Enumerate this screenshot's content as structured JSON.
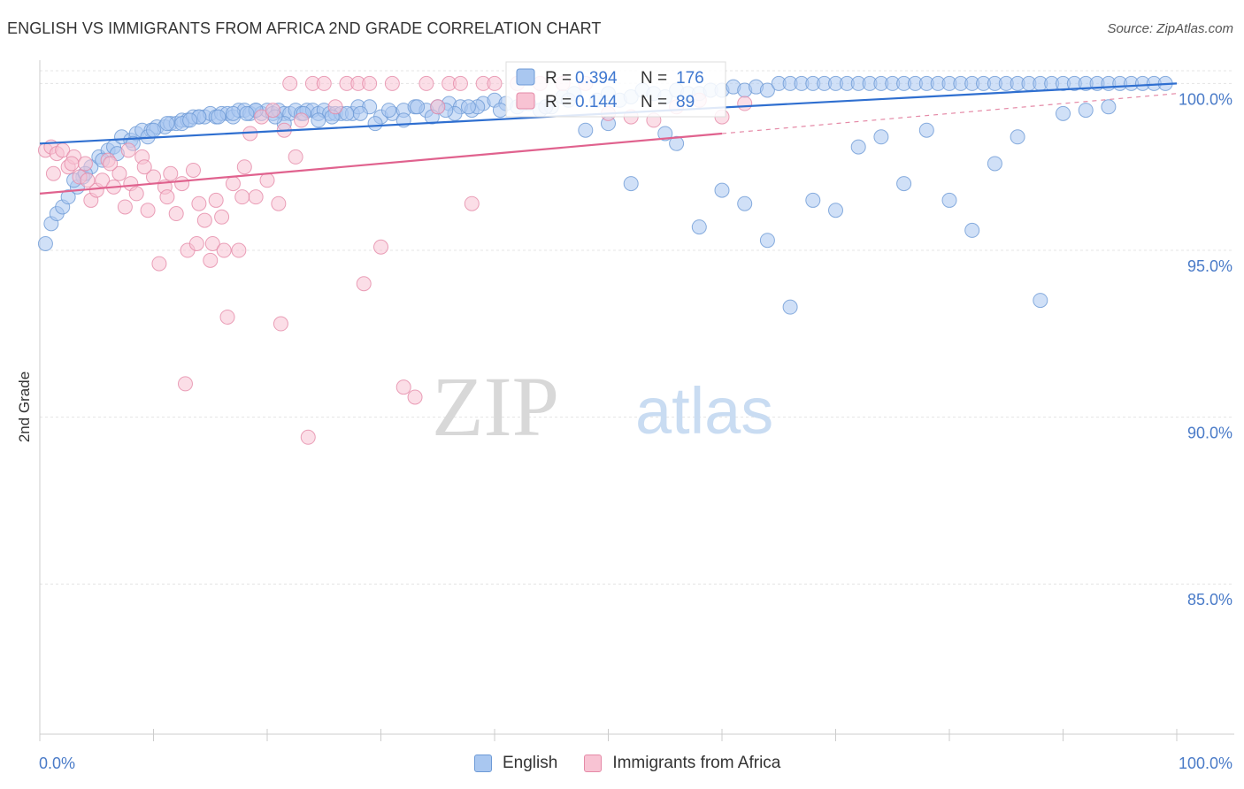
{
  "title": "ENGLISH VS IMMIGRANTS FROM AFRICA 2ND GRADE CORRELATION CHART",
  "source": "Source: ZipAtlas.com",
  "watermark": {
    "zip": "ZIP",
    "atlas": "atlas"
  },
  "chart_data": {
    "type": "scatter",
    "title": "ENGLISH VS IMMIGRANTS FROM AFRICA 2ND GRADE CORRELATION CHART",
    "xlabel": "",
    "ylabel": "2nd Grade",
    "xlim": [
      0,
      100
    ],
    "ylim": [
      80.5,
      100.7
    ],
    "x_tick_labels": {
      "min": "0.0%",
      "max": "100.0%"
    },
    "y_ticks": [
      {
        "value": 100,
        "label": "100.0%"
      },
      {
        "value": 95,
        "label": "95.0%"
      },
      {
        "value": 90,
        "label": "90.0%"
      },
      {
        "value": 85,
        "label": "85.0%"
      }
    ],
    "stats": [
      {
        "r_label": "R =",
        "r": "0.394",
        "n_label": "N =",
        "n": "176"
      },
      {
        "r_label": "R =",
        "r": "0.144",
        "n_label": "N =",
        "n": "89"
      }
    ],
    "series": [
      {
        "name": "English",
        "color": "#6d9ad6",
        "fill": "#a9c7f0",
        "trend": {
          "x0": 0,
          "y0": 98.2,
          "x1": 100,
          "y1": 100.0
        },
        "points": [
          [
            0.5,
            95.2
          ],
          [
            1,
            95.8
          ],
          [
            1.5,
            96.1
          ],
          [
            2,
            96.3
          ],
          [
            2.5,
            96.6
          ],
          [
            3.3,
            96.9
          ],
          [
            3.8,
            97.2
          ],
          [
            4.5,
            97.5
          ],
          [
            5.2,
            97.8
          ],
          [
            6,
            98.0
          ],
          [
            6.5,
            98.1
          ],
          [
            7.2,
            98.4
          ],
          [
            8,
            98.3
          ],
          [
            8.5,
            98.5
          ],
          [
            9,
            98.6
          ],
          [
            9.8,
            98.6
          ],
          [
            10.3,
            98.7
          ],
          [
            11,
            98.7
          ],
          [
            11.5,
            98.8
          ],
          [
            12,
            98.8
          ],
          [
            12.5,
            98.9
          ],
          [
            13,
            98.9
          ],
          [
            13.5,
            99.0
          ],
          [
            14,
            99.0
          ],
          [
            14.5,
            99.0
          ],
          [
            15,
            99.1
          ],
          [
            15.5,
            99.0
          ],
          [
            16,
            99.1
          ],
          [
            16.5,
            99.1
          ],
          [
            17,
            99.0
          ],
          [
            17.5,
            99.2
          ],
          [
            18,
            99.2
          ],
          [
            18.5,
            99.1
          ],
          [
            19,
            99.2
          ],
          [
            19.5,
            99.1
          ],
          [
            20,
            99.2
          ],
          [
            20.5,
            99.1
          ],
          [
            21,
            99.2
          ],
          [
            21.5,
            99.1
          ],
          [
            22,
            99.1
          ],
          [
            22.5,
            99.2
          ],
          [
            23,
            99.1
          ],
          [
            23.5,
            99.2
          ],
          [
            24,
            99.2
          ],
          [
            24.5,
            99.1
          ],
          [
            25,
            99.2
          ],
          [
            25.5,
            99.1
          ],
          [
            26,
            99.1
          ],
          [
            26.5,
            99.1
          ],
          [
            27.5,
            99.1
          ],
          [
            28,
            99.3
          ],
          [
            29,
            99.3
          ],
          [
            30,
            99.0
          ],
          [
            31,
            99.1
          ],
          [
            32,
            99.2
          ],
          [
            33,
            99.3
          ],
          [
            34,
            99.2
          ],
          [
            35,
            99.3
          ],
          [
            36,
            99.4
          ],
          [
            37,
            99.3
          ],
          [
            38,
            99.2
          ],
          [
            39,
            99.4
          ],
          [
            40,
            99.5
          ],
          [
            41,
            99.4
          ],
          [
            42,
            99.3
          ],
          [
            43,
            99.4
          ],
          [
            44,
            99.2
          ],
          [
            45,
            99.3
          ],
          [
            46,
            99.6
          ],
          [
            47,
            99.7
          ],
          [
            49,
            99.5
          ],
          [
            50,
            99.7
          ],
          [
            51,
            99.5
          ],
          [
            52,
            99.6
          ],
          [
            53,
            99.8
          ],
          [
            54,
            99.7
          ],
          [
            55,
            99.6
          ],
          [
            56,
            99.8
          ],
          [
            57,
            99.7
          ],
          [
            58,
            99.7
          ],
          [
            59,
            99.8
          ],
          [
            60,
            99.8
          ],
          [
            61,
            99.9
          ],
          [
            62,
            99.8
          ],
          [
            63,
            99.9
          ],
          [
            64,
            99.8
          ],
          [
            65,
            100
          ],
          [
            66,
            100
          ],
          [
            67,
            100
          ],
          [
            68,
            100
          ],
          [
            69,
            100
          ],
          [
            70,
            100
          ],
          [
            71,
            100
          ],
          [
            72,
            100
          ],
          [
            73,
            100
          ],
          [
            74,
            100
          ],
          [
            75,
            100
          ],
          [
            76,
            100
          ],
          [
            77,
            100
          ],
          [
            78,
            100
          ],
          [
            79,
            100
          ],
          [
            80,
            100
          ],
          [
            81,
            100
          ],
          [
            82,
            100
          ],
          [
            83,
            100
          ],
          [
            84,
            100
          ],
          [
            85,
            100
          ],
          [
            86,
            100
          ],
          [
            87,
            100
          ],
          [
            88,
            100
          ],
          [
            89,
            100
          ],
          [
            90,
            100
          ],
          [
            91,
            100
          ],
          [
            92,
            100
          ],
          [
            93,
            100
          ],
          [
            94,
            100
          ],
          [
            95,
            100
          ],
          [
            96,
            100
          ],
          [
            97,
            100
          ],
          [
            98,
            100
          ],
          [
            99,
            100
          ],
          [
            48,
            98.6
          ],
          [
            50,
            98.8
          ],
          [
            52,
            97.0
          ],
          [
            55,
            98.5
          ],
          [
            56,
            98.2
          ],
          [
            58,
            95.7
          ],
          [
            60,
            96.8
          ],
          [
            62,
            96.4
          ],
          [
            64,
            95.3
          ],
          [
            66,
            93.3
          ],
          [
            68,
            96.5
          ],
          [
            70,
            96.2
          ],
          [
            72,
            98.1
          ],
          [
            74,
            98.4
          ],
          [
            76,
            97.0
          ],
          [
            78,
            98.6
          ],
          [
            80,
            96.5
          ],
          [
            82,
            95.6
          ],
          [
            84,
            97.6
          ],
          [
            86,
            98.4
          ],
          [
            88,
            93.5
          ],
          [
            90,
            99.1
          ],
          [
            92,
            99.2
          ],
          [
            94,
            99.3
          ],
          [
            9.5,
            98.4
          ],
          [
            10,
            98.6
          ],
          [
            12.5,
            98.8
          ],
          [
            14,
            99.0
          ],
          [
            17,
            99.1
          ],
          [
            19,
            99.2
          ],
          [
            21.5,
            98.8
          ],
          [
            24.5,
            98.9
          ],
          [
            27,
            99.1
          ],
          [
            29.5,
            98.8
          ],
          [
            32,
            98.9
          ],
          [
            34.5,
            99.0
          ],
          [
            36.5,
            99.1
          ],
          [
            38.5,
            99.3
          ],
          [
            40.5,
            99.2
          ],
          [
            42.5,
            99.4
          ],
          [
            44.5,
            99.3
          ],
          [
            46.5,
            99.5
          ],
          [
            3,
            97.1
          ],
          [
            4,
            97.3
          ],
          [
            5.5,
            97.7
          ],
          [
            6.8,
            97.9
          ],
          [
            8.2,
            98.2
          ],
          [
            11.2,
            98.8
          ],
          [
            13.2,
            98.9
          ],
          [
            15.7,
            99.0
          ],
          [
            18.2,
            99.1
          ],
          [
            20.7,
            99.0
          ],
          [
            23.2,
            99.1
          ],
          [
            25.7,
            99.0
          ],
          [
            28.2,
            99.1
          ],
          [
            30.7,
            99.2
          ],
          [
            33.2,
            99.3
          ],
          [
            35.7,
            99.2
          ],
          [
            37.7,
            99.3
          ]
        ]
      },
      {
        "name": "Immigrants from Africa",
        "color": "#e58aa7",
        "fill": "#f8c3d3",
        "trend": {
          "x0": 0,
          "y0": 96.7,
          "x1": 60,
          "y1": 98.5
        },
        "trend_dashed": {
          "x0": 60,
          "y0": 98.5,
          "x1": 100,
          "y1": 99.7
        },
        "points": [
          [
            0.5,
            98.0
          ],
          [
            1,
            98.1
          ],
          [
            1.5,
            97.9
          ],
          [
            2,
            98.0
          ],
          [
            2.5,
            97.5
          ],
          [
            3,
            97.8
          ],
          [
            3.5,
            97.2
          ],
          [
            4,
            97.6
          ],
          [
            4.5,
            96.5
          ],
          [
            5,
            96.8
          ],
          [
            5.5,
            97.1
          ],
          [
            6,
            97.7
          ],
          [
            6.5,
            96.9
          ],
          [
            7,
            97.3
          ],
          [
            7.5,
            96.3
          ],
          [
            8,
            97.0
          ],
          [
            8.5,
            96.7
          ],
          [
            9,
            97.8
          ],
          [
            9.5,
            96.2
          ],
          [
            10,
            97.2
          ],
          [
            10.5,
            94.6
          ],
          [
            11,
            96.9
          ],
          [
            11.5,
            97.3
          ],
          [
            12,
            96.1
          ],
          [
            12.5,
            97.0
          ],
          [
            13,
            95.0
          ],
          [
            13.5,
            97.4
          ],
          [
            14,
            96.4
          ],
          [
            14.5,
            95.9
          ],
          [
            15,
            94.7
          ],
          [
            15.5,
            96.5
          ],
          [
            16,
            96.0
          ],
          [
            16.5,
            93.0
          ],
          [
            17,
            97.0
          ],
          [
            17.5,
            95.0
          ],
          [
            18,
            97.5
          ],
          [
            18.5,
            98.5
          ],
          [
            19,
            96.6
          ],
          [
            19.5,
            99.0
          ],
          [
            20,
            97.1
          ],
          [
            20.5,
            99.2
          ],
          [
            21,
            96.4
          ],
          [
            21.5,
            98.6
          ],
          [
            22,
            100
          ],
          [
            22.5,
            97.8
          ],
          [
            23,
            98.9
          ],
          [
            24,
            100
          ],
          [
            25,
            100
          ],
          [
            26,
            99.3
          ],
          [
            27,
            100
          ],
          [
            28,
            100
          ],
          [
            28.5,
            94.0
          ],
          [
            29,
            100
          ],
          [
            30,
            95.1
          ],
          [
            31,
            100
          ],
          [
            32,
            90.9
          ],
          [
            33,
            90.6
          ],
          [
            34,
            100
          ],
          [
            35,
            99.3
          ],
          [
            36,
            100
          ],
          [
            37,
            100
          ],
          [
            38,
            96.4
          ],
          [
            39,
            100
          ],
          [
            40,
            100
          ],
          [
            42,
            100
          ],
          [
            44,
            100
          ],
          [
            46,
            100
          ],
          [
            48,
            100
          ],
          [
            50,
            99.1
          ],
          [
            52,
            99.0
          ],
          [
            54,
            98.9
          ],
          [
            56,
            99.3
          ],
          [
            58,
            99.5
          ],
          [
            60,
            99.0
          ],
          [
            62,
            99.4
          ],
          [
            12.8,
            91.0
          ],
          [
            21.2,
            92.8
          ],
          [
            23.6,
            89.4
          ],
          [
            1.2,
            97.3
          ],
          [
            2.8,
            97.6
          ],
          [
            4.2,
            97.1
          ],
          [
            6.2,
            97.6
          ],
          [
            7.8,
            98.0
          ],
          [
            9.2,
            97.5
          ],
          [
            11.2,
            96.6
          ],
          [
            13.8,
            95.2
          ],
          [
            15.2,
            95.2
          ],
          [
            16.2,
            95.0
          ],
          [
            17.8,
            96.6
          ]
        ]
      }
    ],
    "legend": [
      "English",
      "Immigrants from Africa"
    ]
  }
}
